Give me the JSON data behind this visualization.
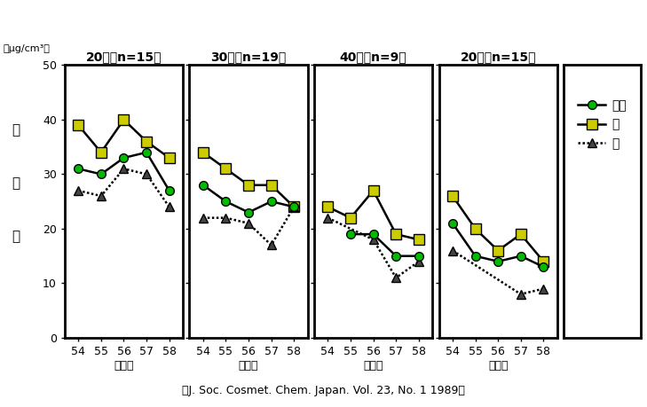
{
  "panels": [
    {
      "title": "20代（n=15）",
      "nenkan": [
        31,
        30,
        33,
        34,
        27
      ],
      "natsu": [
        39,
        34,
        40,
        36,
        33
      ],
      "fuyu": [
        27,
        26,
        31,
        30,
        24
      ]
    },
    {
      "title": "30代（n=19）",
      "nenkan": [
        28,
        25,
        23,
        25,
        24
      ],
      "natsu": [
        34,
        31,
        28,
        28,
        24
      ],
      "fuyu": [
        22,
        22,
        21,
        17,
        24
      ]
    },
    {
      "title": "40代（n=9）",
      "nenkan": [
        null,
        19,
        19,
        15,
        15
      ],
      "natsu": [
        24,
        22,
        27,
        19,
        18
      ],
      "fuyu": [
        22,
        null,
        18,
        11,
        14
      ]
    },
    {
      "title": "20代（n=15）",
      "nenkan": [
        21,
        15,
        14,
        15,
        13
      ],
      "natsu": [
        26,
        20,
        16,
        19,
        14
      ],
      "fuyu": [
        16,
        null,
        null,
        8,
        9
      ]
    }
  ],
  "x_labels": [
    "54",
    "55",
    "56",
    "57",
    "58"
  ],
  "x_label_ja": "（年）",
  "y_chars": [
    "皮",
    "脂",
    "量"
  ],
  "y_unit": "（μg/cm³）",
  "ylim": [
    0,
    50
  ],
  "yticks": [
    0,
    10,
    20,
    30,
    40,
    50
  ],
  "legend_labels": [
    "年間",
    "夏",
    "冬"
  ],
  "color_nenkan": "#00bb00",
  "color_natsu": "#cccc00",
  "color_fuyu": "#444444",
  "line_color": "#000000",
  "caption": "（J. Soc. Cosmet. Chem. Japan. Vol. 23, No. 1 1989）"
}
